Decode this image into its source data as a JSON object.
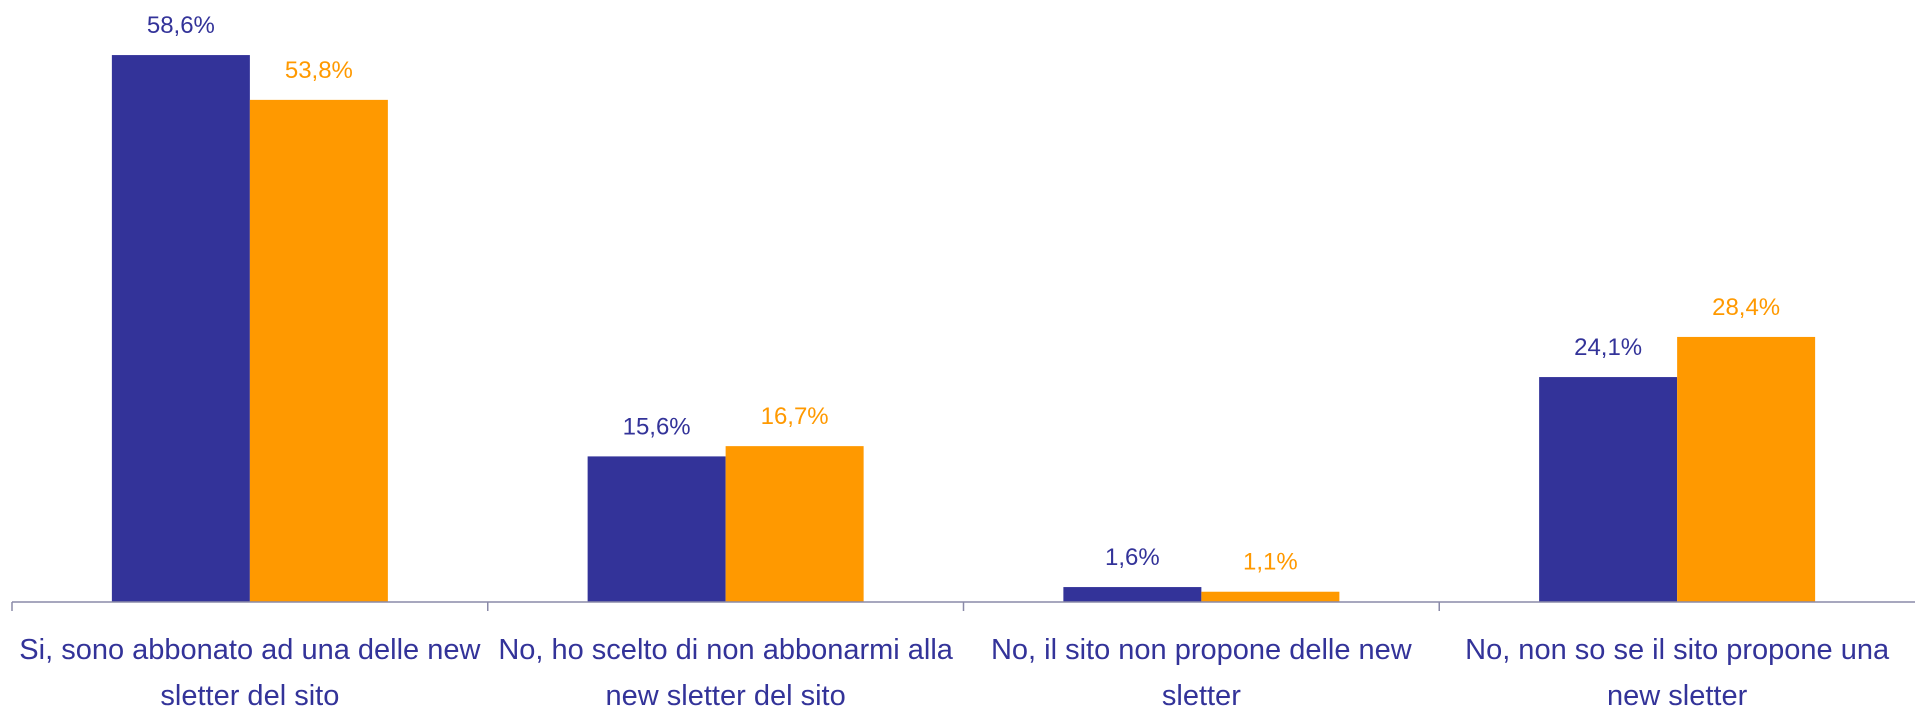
{
  "chart_data": {
    "type": "bar",
    "categories": [
      "Si, sono abbonato ad una delle new sletter del sito",
      "No, ho scelto di non abbonarmi alla new sletter del sito",
      "No, il sito non propone delle new sletter",
      "No, non so se il sito propone una new sletter"
    ],
    "series": [
      {
        "color": "#333399",
        "values": [
          58.6,
          15.6,
          1.6,
          24.1
        ],
        "value_labels": [
          "58,6%",
          "15,6%",
          "1,6%",
          "24,1%"
        ]
      },
      {
        "color": "#ff9900",
        "values": [
          53.8,
          16.7,
          1.1,
          28.4
        ],
        "value_labels": [
          "53,8%",
          "16,7%",
          "1,1%",
          "28,4%"
        ]
      }
    ],
    "ylim": [
      0,
      64.5
    ]
  }
}
